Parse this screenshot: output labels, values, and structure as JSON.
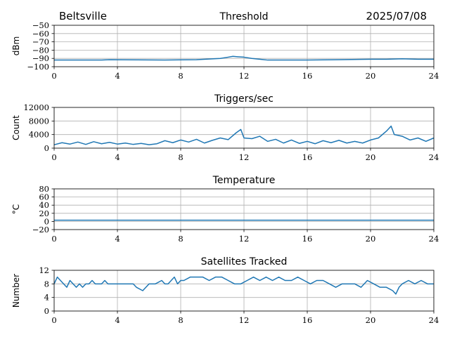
{
  "header": {
    "location": "Beltsville",
    "date": "2025/07/08"
  },
  "chart_data": [
    {
      "type": "line",
      "title": "Threshold",
      "ylabel": "dBm",
      "xlim": [
        0,
        24
      ],
      "ylim": [
        -100,
        -50
      ],
      "xticks": [
        0,
        4,
        8,
        12,
        16,
        20,
        24
      ],
      "yticks": [
        -100,
        -90,
        -80,
        -70,
        -60,
        -50
      ],
      "ytick_labels": [
        "−100",
        "−90",
        "−80",
        "−70",
        "−60",
        "−50"
      ],
      "grid": true,
      "series": [
        {
          "x": [
            0,
            3,
            3.5,
            7,
            9,
            10.5,
            11,
            11.3,
            11.6,
            12,
            12.5,
            13,
            13.5,
            16,
            18,
            20,
            21,
            22,
            23,
            24
          ],
          "values": [
            -92,
            -92,
            -91.5,
            -92,
            -91.5,
            -90,
            -88.5,
            -87.5,
            -88,
            -88.5,
            -90,
            -91,
            -92,
            -92,
            -91.5,
            -91,
            -91,
            -90.5,
            -91,
            -91
          ]
        }
      ]
    },
    {
      "type": "line",
      "title": "Triggers/sec",
      "ylabel": "Count",
      "xlim": [
        0,
        24
      ],
      "ylim": [
        0,
        12000
      ],
      "xticks": [
        0,
        4,
        8,
        12,
        16,
        20,
        24
      ],
      "yticks": [
        0,
        4000,
        8000,
        12000
      ],
      "ytick_labels": [
        "0",
        "4000",
        "8000",
        "12000"
      ],
      "grid": true,
      "series": [
        {
          "x": [
            0,
            0.5,
            1,
            1.5,
            2,
            2.5,
            3,
            3.5,
            4,
            4.5,
            5,
            5.5,
            6,
            6.5,
            7,
            7.5,
            8,
            8.5,
            9,
            9.5,
            10,
            10.5,
            11,
            11.5,
            11.8,
            12,
            12.5,
            13,
            13.5,
            14,
            14.5,
            15,
            15.5,
            16,
            16.5,
            17,
            17.5,
            18,
            18.5,
            19,
            19.5,
            20,
            20.5,
            21,
            21.3,
            21.5,
            22,
            22.5,
            23,
            23.5,
            24
          ],
          "values": [
            1000,
            1600,
            1200,
            1800,
            1100,
            1900,
            1300,
            1700,
            1200,
            1500,
            1100,
            1400,
            1000,
            1300,
            2200,
            1600,
            2400,
            1800,
            2600,
            1500,
            2300,
            3000,
            2500,
            4500,
            5500,
            3000,
            2800,
            3500,
            2000,
            2600,
            1500,
            2400,
            1400,
            2000,
            1300,
            2200,
            1600,
            2300,
            1500,
            2000,
            1500,
            2400,
            3000,
            5000,
            6500,
            4000,
            3500,
            2400,
            3000,
            2000,
            3000
          ]
        }
      ]
    },
    {
      "type": "line",
      "title": "Temperature",
      "ylabel": "°C",
      "xlim": [
        0,
        24
      ],
      "ylim": [
        -20,
        80
      ],
      "xticks": [
        0,
        4,
        8,
        12,
        16,
        20,
        24
      ],
      "yticks": [
        -20,
        0,
        20,
        40,
        60,
        80
      ],
      "ytick_labels": [
        "−20",
        "0",
        "20",
        "40",
        "60",
        "80"
      ],
      "grid": true,
      "series": [
        {
          "x": [
            0,
            24
          ],
          "values": [
            3,
            3
          ]
        }
      ]
    },
    {
      "type": "line",
      "title": "Satellites Tracked",
      "ylabel": "Number",
      "xlim": [
        0,
        24
      ],
      "ylim": [
        0,
        12
      ],
      "xticks": [
        0,
        4,
        8,
        12,
        16,
        20,
        24
      ],
      "yticks": [
        0,
        4,
        8,
        12
      ],
      "ytick_labels": [
        "0",
        "4",
        "8",
        "12"
      ],
      "grid": true,
      "series": [
        {
          "x": [
            0,
            0.2,
            0.4,
            0.6,
            0.8,
            1.0,
            1.2,
            1.4,
            1.6,
            1.8,
            2.0,
            2.2,
            2.4,
            2.6,
            3.0,
            3.2,
            3.4,
            3.6,
            4.0,
            5.0,
            5.2,
            5.6,
            6.0,
            6.4,
            6.8,
            7.0,
            7.2,
            7.6,
            7.8,
            8.0,
            8.2,
            8.6,
            9.0,
            9.4,
            9.8,
            10.2,
            10.6,
            11.0,
            11.4,
            11.8,
            12.2,
            12.6,
            13.0,
            13.4,
            13.8,
            14.2,
            14.6,
            15.0,
            15.4,
            15.8,
            16.2,
            16.6,
            17.0,
            17.4,
            17.8,
            18.2,
            18.6,
            19.0,
            19.4,
            19.8,
            20.2,
            20.6,
            21.0,
            21.4,
            21.6,
            21.8,
            22.0,
            22.4,
            22.8,
            23.2,
            23.6,
            24.0
          ],
          "values": [
            8,
            10,
            9,
            8,
            7,
            9,
            8,
            7,
            8,
            7,
            8,
            8,
            9,
            8,
            8,
            9,
            8,
            8,
            8,
            8,
            7,
            6,
            8,
            8,
            9,
            8,
            8,
            10,
            8,
            9,
            9,
            10,
            10,
            10,
            9,
            10,
            10,
            9,
            8,
            8,
            9,
            10,
            9,
            10,
            9,
            10,
            9,
            9,
            10,
            9,
            8,
            9,
            9,
            8,
            7,
            8,
            8,
            8,
            7,
            9,
            8,
            7,
            7,
            6,
            5,
            7,
            8,
            9,
            8,
            9,
            8,
            8
          ]
        }
      ]
    }
  ]
}
